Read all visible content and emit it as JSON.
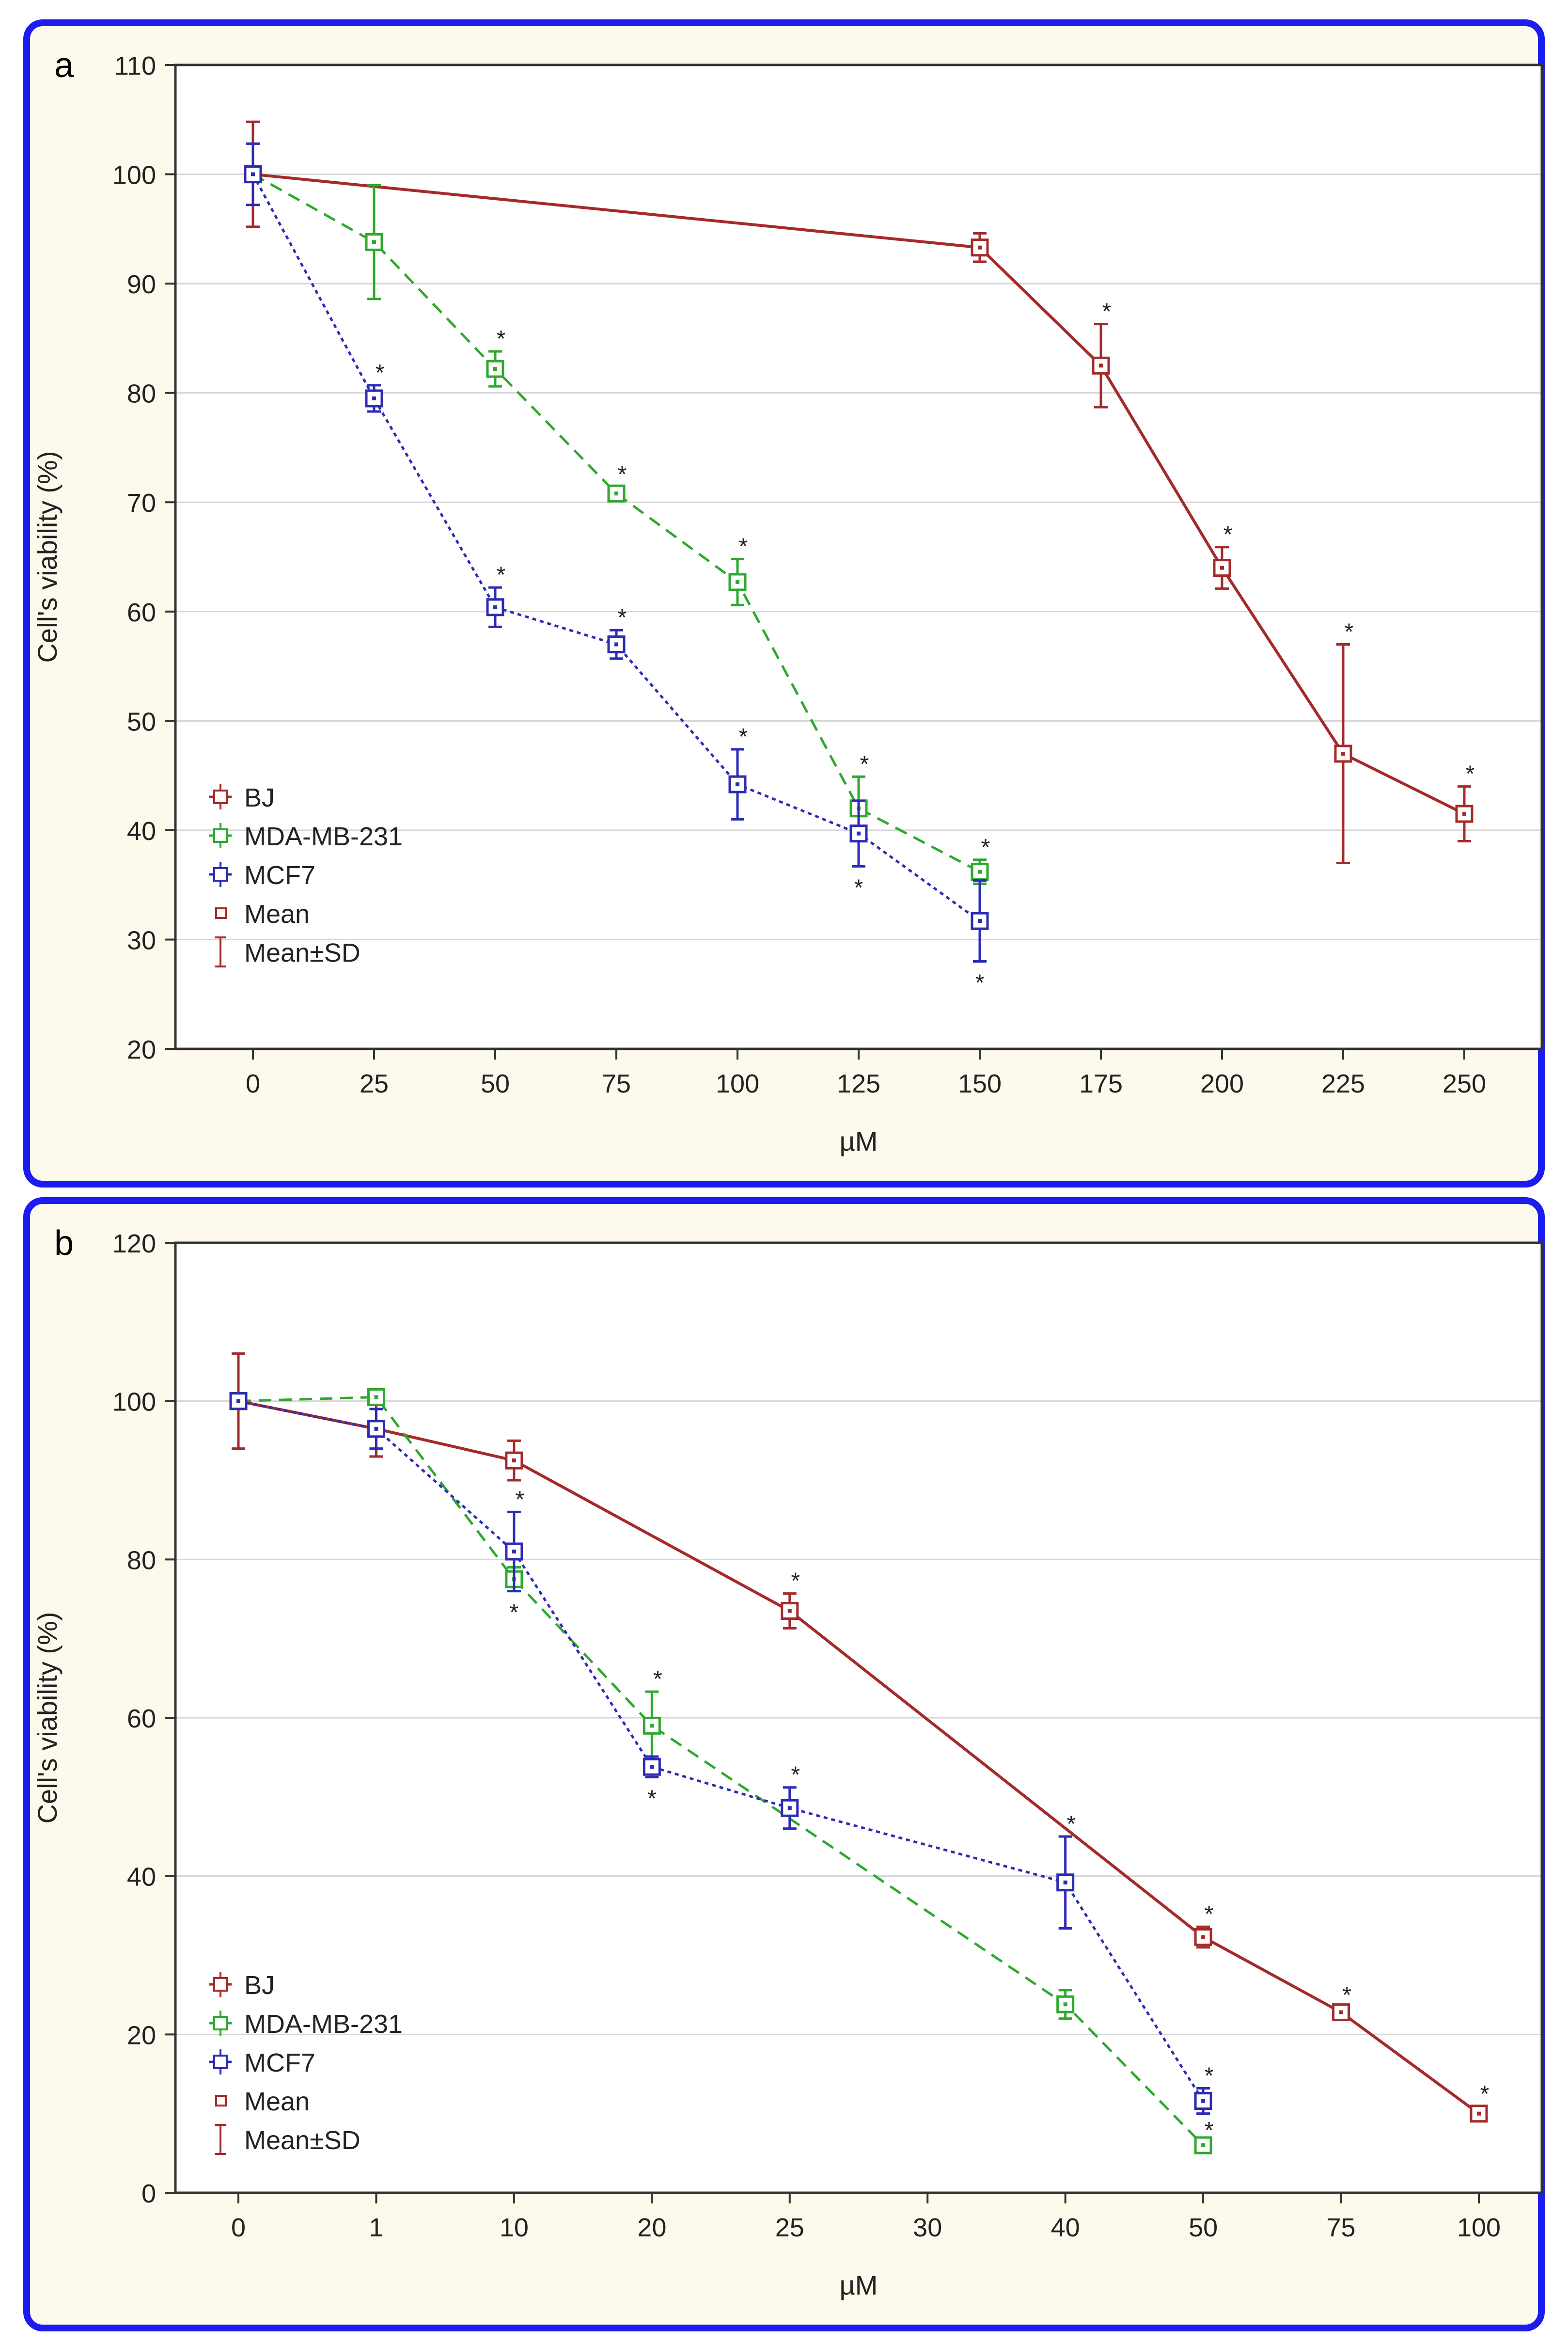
{
  "chart_data": [
    {
      "panel_label": "a",
      "type": "line",
      "xlabel": "µM",
      "ylabel": "Cell's viability (%)",
      "categories": [
        "0",
        "25",
        "50",
        "75",
        "100",
        "125",
        "150",
        "175",
        "200",
        "225",
        "250"
      ],
      "ylim": [
        20,
        110
      ],
      "yticks": [
        20,
        30,
        40,
        50,
        60,
        70,
        80,
        90,
        100,
        110
      ],
      "grid": true,
      "legend_position": "bottom-left",
      "legend": {
        "entries": [
          "BJ",
          "MDA-MB-231",
          "MCF7"
        ],
        "mean_label": "Mean",
        "sd_label": "Mean±SD"
      },
      "significance_marker": "*",
      "series": [
        {
          "name": "BJ",
          "color": "#a52a2a",
          "dash": "solid",
          "points": [
            {
              "x": "0",
              "y": 100,
              "sd": 4.8,
              "sig": ""
            },
            {
              "x": "150",
              "y": 93.3,
              "sd": 1.3,
              "sig": ""
            },
            {
              "x": "175",
              "y": 82.5,
              "sd": 3.8,
              "sig": "above"
            },
            {
              "x": "200",
              "y": 64,
              "sd": 1.9,
              "sig": "above"
            },
            {
              "x": "225",
              "y": 47,
              "sd": 10,
              "sig": "above"
            },
            {
              "x": "250",
              "y": 41.5,
              "sd": 2.5,
              "sig": "above"
            }
          ]
        },
        {
          "name": "MDA-MB-231",
          "color": "#2ea82e",
          "dash": "dashed",
          "points": [
            {
              "x": "0",
              "y": 100,
              "sd": 0,
              "sig": ""
            },
            {
              "x": "25",
              "y": 93.8,
              "sd": 5.2,
              "sig": ""
            },
            {
              "x": "50",
              "y": 82.2,
              "sd": 1.6,
              "sig": "above"
            },
            {
              "x": "75",
              "y": 70.8,
              "sd": 0.6,
              "sig": "above"
            },
            {
              "x": "100",
              "y": 62.7,
              "sd": 2.1,
              "sig": "above"
            },
            {
              "x": "125",
              "y": 42,
              "sd": 2.9,
              "sig": "above"
            },
            {
              "x": "150",
              "y": 36.2,
              "sd": 1.1,
              "sig": "above"
            }
          ]
        },
        {
          "name": "MCF7",
          "color": "#2b2bb5",
          "dash": "dotted",
          "points": [
            {
              "x": "0",
              "y": 100,
              "sd": 2.8,
              "sig": ""
            },
            {
              "x": "25",
              "y": 79.5,
              "sd": 1.2,
              "sig": "above"
            },
            {
              "x": "50",
              "y": 60.4,
              "sd": 1.8,
              "sig": "above"
            },
            {
              "x": "75",
              "y": 57,
              "sd": 1.3,
              "sig": "above"
            },
            {
              "x": "100",
              "y": 44.2,
              "sd": 3.2,
              "sig": "above"
            },
            {
              "x": "125",
              "y": 39.7,
              "sd": 3.0,
              "sig": "below"
            },
            {
              "x": "150",
              "y": 31.7,
              "sd": 3.7,
              "sig": "below"
            }
          ]
        }
      ]
    },
    {
      "panel_label": "b",
      "type": "line",
      "xlabel": "µM",
      "ylabel": "Cell's viability (%)",
      "categories": [
        "0",
        "1",
        "10",
        "20",
        "25",
        "30",
        "40",
        "50",
        "75",
        "100"
      ],
      "ylim": [
        0,
        120
      ],
      "yticks": [
        0,
        20,
        40,
        60,
        80,
        100,
        120
      ],
      "grid": true,
      "legend_position": "bottom-left",
      "legend": {
        "entries": [
          "BJ",
          "MDA-MB-231",
          "MCF7"
        ],
        "mean_label": "Mean",
        "sd_label": "Mean±SD"
      },
      "significance_marker": "*",
      "series": [
        {
          "name": "BJ",
          "color": "#a52a2a",
          "dash": "solid",
          "points": [
            {
              "x": "0",
              "y": 100,
              "sd": 6,
              "sig": ""
            },
            {
              "x": "1",
              "y": 96.5,
              "sd": 3.5,
              "sig": ""
            },
            {
              "x": "10",
              "y": 92.5,
              "sd": 2.5,
              "sig": ""
            },
            {
              "x": "25",
              "y": 73.5,
              "sd": 2.2,
              "sig": "above"
            },
            {
              "x": "50",
              "y": 32.3,
              "sd": 1.3,
              "sig": "above"
            },
            {
              "x": "75",
              "y": 22.8,
              "sd": 0.6,
              "sig": "above"
            },
            {
              "x": "100",
              "y": 10,
              "sd": 0.9,
              "sig": "above"
            }
          ]
        },
        {
          "name": "MDA-MB-231",
          "color": "#2ea82e",
          "dash": "dashed",
          "points": [
            {
              "x": "0",
              "y": 100,
              "sd": 0.5,
              "sig": ""
            },
            {
              "x": "1",
              "y": 100.5,
              "sd": 0.3,
              "sig": ""
            },
            {
              "x": "10",
              "y": 77.5,
              "sd": 1.5,
              "sig": "below"
            },
            {
              "x": "20",
              "y": 59,
              "sd": 4.3,
              "sig": "above"
            },
            {
              "x": "40",
              "y": 23.8,
              "sd": 1.8,
              "sig": ""
            },
            {
              "x": "50",
              "y": 6,
              "sd": 0.3,
              "sig": "above"
            }
          ]
        },
        {
          "name": "MCF7",
          "color": "#2b2bb5",
          "dash": "dotted",
          "points": [
            {
              "x": "0",
              "y": 100,
              "sd": 0.5,
              "sig": ""
            },
            {
              "x": "1",
              "y": 96.5,
              "sd": 2.5,
              "sig": ""
            },
            {
              "x": "10",
              "y": 81,
              "sd": 5,
              "sig": "above"
            },
            {
              "x": "20",
              "y": 53.8,
              "sd": 1.3,
              "sig": "below"
            },
            {
              "x": "25",
              "y": 48.6,
              "sd": 2.6,
              "sig": "above"
            },
            {
              "x": "40",
              "y": 39.2,
              "sd": 5.8,
              "sig": "above"
            },
            {
              "x": "50",
              "y": 11.6,
              "sd": 1.6,
              "sig": "above"
            }
          ]
        }
      ]
    }
  ]
}
